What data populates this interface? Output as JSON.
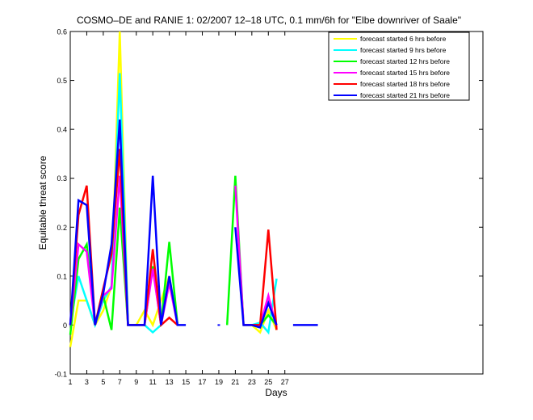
{
  "chart_data": {
    "type": "line",
    "title": "COSMO–DE and RANIE 1: 02/2007 12–18 UTC, 0.1 mm/6h for \"Elbe downriver of Saale\"",
    "xlabel": "Days",
    "ylabel": "Equitable threat score",
    "xlim": [
      1,
      51
    ],
    "ylim": [
      -0.1,
      0.6
    ],
    "xticks": [
      1,
      3,
      5,
      7,
      9,
      11,
      13,
      15,
      17,
      19,
      21,
      23,
      25,
      27
    ],
    "yticks": [
      -0.1,
      0,
      0.1,
      0.2,
      0.3,
      0.4,
      0.5,
      0.6
    ],
    "grid": false,
    "legend_position": "top-right",
    "series": [
      {
        "name": "forecast started 6 hrs before",
        "color": "#ffff00",
        "values": [
          [
            1,
            -0.045
          ],
          [
            2,
            0.05
          ],
          [
            3,
            0.05
          ],
          [
            4,
            0.0
          ],
          [
            5,
            0.03
          ],
          [
            6,
            0.08
          ],
          [
            7,
            0.6
          ],
          [
            8,
            0.0
          ],
          [
            9,
            0.0
          ],
          [
            10,
            0.03
          ],
          [
            11,
            0.0
          ],
          [
            12,
            0.05
          ],
          [
            13,
            0.1
          ],
          [
            14,
            0.0
          ],
          null,
          null,
          null,
          null,
          null,
          null,
          null,
          [
            22,
            0.0
          ],
          [
            23,
            0.0
          ],
          [
            24,
            -0.015
          ],
          [
            25,
            0.03
          ],
          [
            26,
            -0.01
          ]
        ]
      },
      {
        "name": "forecast started 9 hrs before",
        "color": "#00ffff",
        "values": [
          [
            1,
            0.0
          ],
          [
            2,
            0.1
          ],
          [
            3,
            0.05
          ],
          [
            4,
            0.0
          ],
          [
            5,
            0.05
          ],
          [
            6,
            0.08
          ],
          [
            7,
            0.515
          ],
          [
            8,
            0.0
          ],
          [
            9,
            0.0
          ],
          [
            10,
            0.0
          ],
          [
            11,
            -0.015
          ],
          [
            12,
            0.0
          ],
          [
            13,
            0.09
          ],
          [
            14,
            0.0
          ],
          null,
          null,
          null,
          null,
          null,
          null,
          null,
          [
            22,
            0.0
          ],
          [
            23,
            0.0
          ],
          [
            24,
            0.005
          ],
          [
            25,
            -0.015
          ],
          [
            26,
            0.095
          ]
        ]
      },
      {
        "name": "forecast started 12 hrs before",
        "color": "#00ff00",
        "values": [
          [
            1,
            -0.02
          ],
          [
            2,
            0.135
          ],
          [
            3,
            0.165
          ],
          [
            4,
            0.0
          ],
          [
            5,
            0.06
          ],
          [
            6,
            -0.01
          ],
          [
            7,
            0.24
          ],
          [
            8,
            0.0
          ],
          [
            9,
            0.0
          ],
          [
            10,
            0.0
          ],
          [
            11,
            0.12
          ],
          [
            12,
            0.0
          ],
          [
            13,
            0.17
          ],
          [
            14,
            0.0
          ],
          null,
          null,
          null,
          null,
          null,
          [
            20,
            0.0
          ],
          [
            21,
            0.305
          ],
          [
            22,
            0.0
          ],
          [
            23,
            0.0
          ],
          [
            24,
            0.0
          ],
          [
            25,
            0.02
          ],
          [
            26,
            0.0
          ]
        ]
      },
      {
        "name": "forecast started 15 hrs before",
        "color": "#ff00ff",
        "values": [
          [
            1,
            0.0
          ],
          [
            2,
            0.165
          ],
          [
            3,
            0.15
          ],
          [
            4,
            0.0
          ],
          [
            5,
            0.06
          ],
          [
            6,
            0.075
          ],
          [
            7,
            0.305
          ],
          [
            8,
            0.0
          ],
          [
            9,
            0.0
          ],
          [
            10,
            0.0
          ],
          [
            11,
            0.115
          ],
          [
            12,
            0.0
          ],
          [
            13,
            0.085
          ],
          [
            14,
            0.0
          ],
          null,
          null,
          null,
          null,
          null,
          null,
          [
            21,
            0.285
          ],
          [
            22,
            0.0
          ],
          [
            23,
            0.0
          ],
          [
            24,
            0.0
          ],
          [
            25,
            0.06
          ],
          [
            26,
            -0.005
          ]
        ]
      },
      {
        "name": "forecast started 18 hrs before",
        "color": "#ff0000",
        "values": [
          [
            1,
            0.0
          ],
          [
            2,
            0.225
          ],
          [
            3,
            0.285
          ],
          [
            4,
            0.0
          ],
          [
            5,
            0.075
          ],
          [
            6,
            0.145
          ],
          [
            7,
            0.36
          ],
          [
            8,
            0.0
          ],
          [
            9,
            0.0
          ],
          [
            10,
            0.0
          ],
          [
            11,
            0.155
          ],
          [
            12,
            0.0
          ],
          [
            13,
            0.015
          ],
          [
            14,
            0.0
          ],
          null,
          null,
          null,
          null,
          null,
          null,
          null,
          [
            22,
            0.0
          ],
          [
            23,
            0.0
          ],
          [
            24,
            0.0
          ],
          [
            25,
            0.195
          ],
          [
            26,
            -0.01
          ]
        ]
      },
      {
        "name": "forecast started 21 hrs before",
        "color": "#0000ff",
        "values": [
          [
            1,
            0.0
          ],
          [
            2,
            0.255
          ],
          [
            3,
            0.245
          ],
          [
            4,
            0.0
          ],
          [
            5,
            0.065
          ],
          [
            6,
            0.165
          ],
          [
            7,
            0.42
          ],
          [
            8,
            0.0
          ],
          [
            9,
            0.0
          ],
          [
            10,
            0.0
          ],
          [
            11,
            0.305
          ],
          [
            12,
            0.0
          ],
          [
            13,
            0.1
          ],
          [
            14,
            0.0
          ],
          [
            15,
            0.0
          ],
          null,
          null,
          null,
          [
            19,
            0.0
          ],
          null,
          [
            21,
            0.2
          ],
          [
            22,
            0.0
          ],
          [
            23,
            0.0
          ],
          [
            24,
            -0.005
          ],
          [
            25,
            0.045
          ],
          [
            26,
            0.0
          ],
          null,
          [
            28,
            0.0
          ],
          [
            29,
            0.0
          ],
          [
            30,
            0.0
          ],
          [
            31,
            0.0
          ]
        ]
      }
    ]
  }
}
